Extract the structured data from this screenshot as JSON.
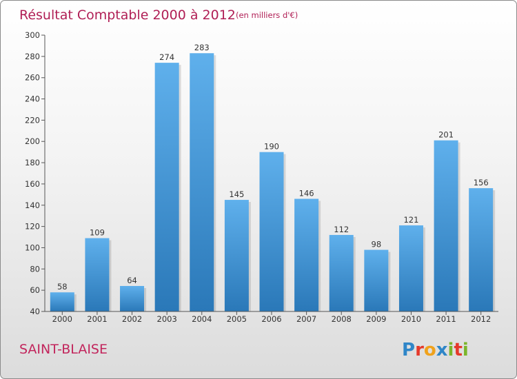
{
  "chart_data": {
    "type": "bar",
    "title": "Résultat Comptable 2000 à 2012",
    "subtitle": "(en milliers d'€)",
    "xlabel": "",
    "ylabel": "",
    "categories": [
      "2000",
      "2001",
      "2002",
      "2003",
      "2004",
      "2005",
      "2006",
      "2007",
      "2008",
      "2009",
      "2010",
      "2011",
      "2012"
    ],
    "values": [
      58,
      109,
      64,
      274,
      283,
      145,
      190,
      146,
      112,
      98,
      121,
      201,
      156
    ],
    "ylim": [
      40,
      300
    ],
    "yticks": [
      40,
      60,
      80,
      100,
      120,
      140,
      160,
      180,
      200,
      220,
      240,
      260,
      280,
      300
    ],
    "grid": false,
    "bar_color": "#3d94d9",
    "bar_color_light": "#5fb0ec",
    "bar_color_dark": "#2a78b8"
  },
  "footer": {
    "town": "SAINT-BLAISE",
    "logo_letters": [
      {
        "char": "P",
        "color": "#2f86c8"
      },
      {
        "char": "r",
        "color": "#e5392b"
      },
      {
        "char": "o",
        "color": "#f0a21c"
      },
      {
        "char": "x",
        "color": "#2f86c8"
      },
      {
        "char": "i",
        "color": "#7bb52a"
      },
      {
        "char": "t",
        "color": "#e5392b"
      },
      {
        "char": "i",
        "color": "#7bb52a"
      }
    ]
  },
  "colors": {
    "title": "#b01e55",
    "axis": "#555555",
    "text": "#333333"
  }
}
